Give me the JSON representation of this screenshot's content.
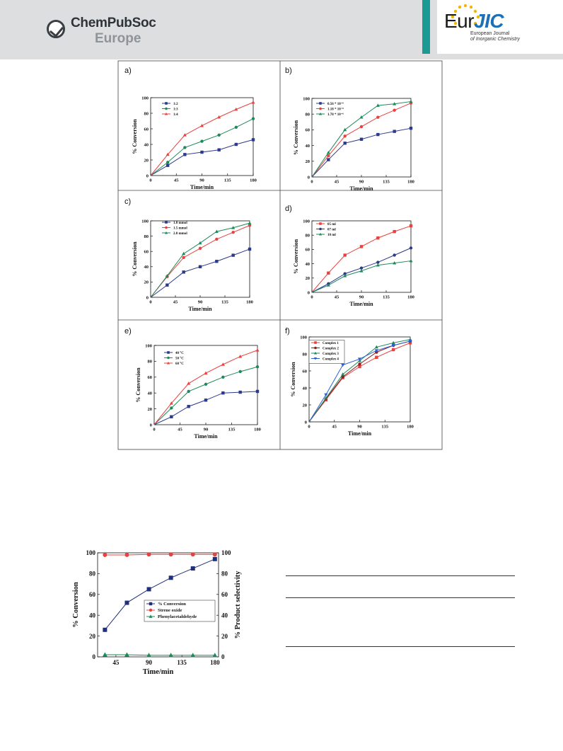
{
  "header": {
    "publisher_name": "ChemPubSoc",
    "publisher_region": "Europe",
    "journal_logo_main": "Eur",
    "journal_logo_accent": "JIC",
    "journal_tag_line1": "European Journal",
    "journal_tag_line2": "of Inorganic Chemistry",
    "colors": {
      "header_bg": "#dcdedf",
      "teal": "#1a9a92",
      "jic_blue": "#1e6fb5",
      "star_yellow": "#f2b705"
    }
  },
  "chart_data": [
    {
      "panel": "a)",
      "type": "line",
      "xlabel": "Time/min",
      "ylabel": "% Conversion",
      "xlim": [
        0,
        180
      ],
      "ylim": [
        0,
        100
      ],
      "xticks": [
        0,
        45,
        90,
        135,
        180
      ],
      "yticks": [
        0,
        20,
        40,
        60,
        80,
        100
      ],
      "legend": "top-left",
      "series": [
        {
          "name": "1:2",
          "color": "#2b3a8c",
          "marker": "square",
          "x": [
            0,
            30,
            60,
            90,
            120,
            150,
            180
          ],
          "y": [
            0,
            13,
            27,
            30,
            33,
            40,
            46
          ]
        },
        {
          "name": "1:3",
          "color": "#1e8a5a",
          "marker": "circle",
          "x": [
            0,
            30,
            60,
            90,
            120,
            150,
            180
          ],
          "y": [
            0,
            17,
            36,
            44,
            52,
            62,
            73
          ]
        },
        {
          "name": "1:4",
          "color": "#e8413f",
          "marker": "triangle",
          "x": [
            0,
            30,
            60,
            90,
            120,
            150,
            180
          ],
          "y": [
            0,
            27,
            52,
            64,
            75,
            85,
            94
          ]
        }
      ]
    },
    {
      "panel": "b)",
      "type": "line",
      "xlabel": "Time/min",
      "ylabel": "% Conversion",
      "xlim": [
        0,
        180
      ],
      "ylim": [
        0,
        100
      ],
      "xticks": [
        0,
        45,
        90,
        135,
        180
      ],
      "yticks": [
        0,
        20,
        40,
        60,
        80,
        100
      ],
      "legend": "top-left",
      "series": [
        {
          "name": "0.56 * 10⁻⁶",
          "color": "#2b3a8c",
          "marker": "square",
          "x": [
            0,
            30,
            60,
            90,
            120,
            150,
            180
          ],
          "y": [
            0,
            22,
            43,
            48,
            54,
            58,
            62
          ]
        },
        {
          "name": "1.18 * 10⁻⁶",
          "color": "#e8413f",
          "marker": "circle",
          "x": [
            0,
            30,
            60,
            90,
            120,
            150,
            180
          ],
          "y": [
            0,
            27,
            52,
            64,
            76,
            85,
            94
          ]
        },
        {
          "name": "1.78 * 10⁻⁶",
          "color": "#1e8a5a",
          "marker": "triangle",
          "x": [
            0,
            30,
            60,
            90,
            120,
            150,
            180
          ],
          "y": [
            0,
            31,
            60,
            76,
            91,
            93,
            96
          ]
        }
      ]
    },
    {
      "panel": "c)",
      "type": "line",
      "xlabel": "Time/min",
      "ylabel": "% Conversion",
      "xlim": [
        0,
        180
      ],
      "ylim": [
        0,
        100
      ],
      "xticks": [
        0,
        45,
        90,
        135,
        180
      ],
      "yticks": [
        0,
        20,
        40,
        60,
        80,
        100
      ],
      "legend": "top-left",
      "series": [
        {
          "name": "1.0 mmol",
          "color": "#2b3a8c",
          "marker": "square",
          "x": [
            0,
            30,
            60,
            90,
            120,
            150,
            180
          ],
          "y": [
            0,
            16,
            33,
            40,
            47,
            55,
            63
          ]
        },
        {
          "name": "1.5 mmol",
          "color": "#e8413f",
          "marker": "circle",
          "x": [
            0,
            30,
            60,
            90,
            120,
            150,
            180
          ],
          "y": [
            0,
            27,
            52,
            64,
            76,
            85,
            94
          ]
        },
        {
          "name": "2.0 mmol",
          "color": "#1e8a5a",
          "marker": "triangle",
          "x": [
            0,
            30,
            60,
            90,
            120,
            150,
            180
          ],
          "y": [
            0,
            28,
            57,
            71,
            86,
            91,
            97
          ]
        }
      ]
    },
    {
      "panel": "d)",
      "type": "line",
      "xlabel": "Time/min",
      "ylabel": "% Conversion",
      "xlim": [
        0,
        180
      ],
      "ylim": [
        0,
        100
      ],
      "xticks": [
        0,
        45,
        90,
        135,
        180
      ],
      "yticks": [
        0,
        20,
        40,
        60,
        80,
        100
      ],
      "legend": "top-left",
      "series": [
        {
          "name": "05 ml",
          "color": "#e8413f",
          "marker": "square",
          "x": [
            0,
            30,
            60,
            90,
            120,
            150,
            180
          ],
          "y": [
            0,
            27,
            52,
            64,
            76,
            85,
            93
          ]
        },
        {
          "name": "07 ml",
          "color": "#2b3a8c",
          "marker": "circle",
          "x": [
            0,
            30,
            60,
            90,
            120,
            150,
            180
          ],
          "y": [
            0,
            12,
            26,
            34,
            42,
            52,
            62
          ]
        },
        {
          "name": "10 ml",
          "color": "#1e8a5a",
          "marker": "triangle",
          "x": [
            0,
            30,
            60,
            90,
            120,
            150,
            180
          ],
          "y": [
            0,
            10,
            23,
            30,
            38,
            41,
            44
          ]
        }
      ]
    },
    {
      "panel": "e)",
      "type": "line",
      "xlabel": "Time/min",
      "ylabel": "% Conversion",
      "xlim": [
        0,
        180
      ],
      "ylim": [
        0,
        100
      ],
      "xticks": [
        0,
        45,
        90,
        135,
        180
      ],
      "yticks": [
        0,
        20,
        40,
        60,
        80,
        100
      ],
      "legend": "top-left",
      "series": [
        {
          "name": "40 °C",
          "color": "#2b3a8c",
          "marker": "square",
          "x": [
            0,
            30,
            60,
            90,
            120,
            150,
            180
          ],
          "y": [
            0,
            10,
            23,
            31,
            40,
            41,
            42
          ]
        },
        {
          "name": "50 °C",
          "color": "#1e8a5a",
          "marker": "circle",
          "x": [
            0,
            30,
            60,
            90,
            120,
            150,
            180
          ],
          "y": [
            0,
            21,
            42,
            51,
            60,
            67,
            73
          ]
        },
        {
          "name": "60 °C",
          "color": "#e8413f",
          "marker": "triangle",
          "x": [
            0,
            30,
            60,
            90,
            120,
            150,
            180
          ],
          "y": [
            0,
            27,
            52,
            65,
            76,
            86,
            94
          ]
        }
      ]
    },
    {
      "panel": "f)",
      "type": "line",
      "xlabel": "Time/min",
      "ylabel": "% Conversion",
      "xlim": [
        0,
        180
      ],
      "ylim": [
        0,
        100
      ],
      "xticks": [
        0,
        45,
        90,
        135,
        180
      ],
      "yticks": [
        0,
        20,
        40,
        60,
        80,
        100
      ],
      "legend": "top-left",
      "series": [
        {
          "name": "Complex 1",
          "color": "#e8413f",
          "marker": "square",
          "x": [
            0,
            30,
            60,
            90,
            120,
            150,
            180
          ],
          "y": [
            0,
            26,
            52,
            65,
            76,
            85,
            93
          ]
        },
        {
          "name": "Complex 2",
          "color": "#8b1e1e",
          "marker": "circle",
          "x": [
            0,
            30,
            60,
            90,
            120,
            150,
            180
          ],
          "y": [
            0,
            27,
            53,
            68,
            82,
            90,
            95
          ]
        },
        {
          "name": "Complex 3",
          "color": "#1e8a5a",
          "marker": "triangle",
          "x": [
            0,
            30,
            60,
            90,
            120,
            150,
            180
          ],
          "y": [
            0,
            28,
            56,
            72,
            88,
            93,
            97
          ]
        },
        {
          "name": "Complex 4",
          "color": "#2b5fd0",
          "marker": "triangle-down",
          "x": [
            0,
            30,
            60,
            90,
            120,
            150,
            180
          ],
          "y": [
            0,
            32,
            67,
            74,
            84,
            90,
            95
          ]
        }
      ]
    },
    {
      "panel": "",
      "type": "line",
      "xlabel": "Time/min",
      "ylabel": "% Conversion",
      "y2label": "% Product selectivity",
      "xlim": [
        20,
        185
      ],
      "ylim": [
        0,
        100
      ],
      "y2lim": [
        0,
        100
      ],
      "xticks": [
        45,
        90,
        135,
        180
      ],
      "yticks": [
        0,
        20,
        40,
        60,
        80,
        100
      ],
      "y2ticks": [
        0,
        20,
        40,
        60,
        80,
        100
      ],
      "legend": "center-right",
      "series": [
        {
          "name": "% Conversion",
          "color": "#1f2f7a",
          "marker": "square",
          "x": [
            30,
            60,
            90,
            120,
            150,
            180
          ],
          "y": [
            26,
            52,
            65,
            76,
            85,
            94
          ]
        },
        {
          "name": "Strene oxide",
          "color": "#e8413f",
          "marker": "circle",
          "x": [
            30,
            60,
            90,
            120,
            150,
            180
          ],
          "y": [
            98,
            98,
            98.5,
            98.5,
            98.5,
            98.5
          ]
        },
        {
          "name": "Phenylacetaldehyde",
          "color": "#1e8a5a",
          "marker": "triangle",
          "x": [
            30,
            60,
            90,
            120,
            150,
            180
          ],
          "y": [
            2,
            2,
            1.5,
            1.5,
            1.5,
            1.5
          ]
        }
      ]
    }
  ]
}
